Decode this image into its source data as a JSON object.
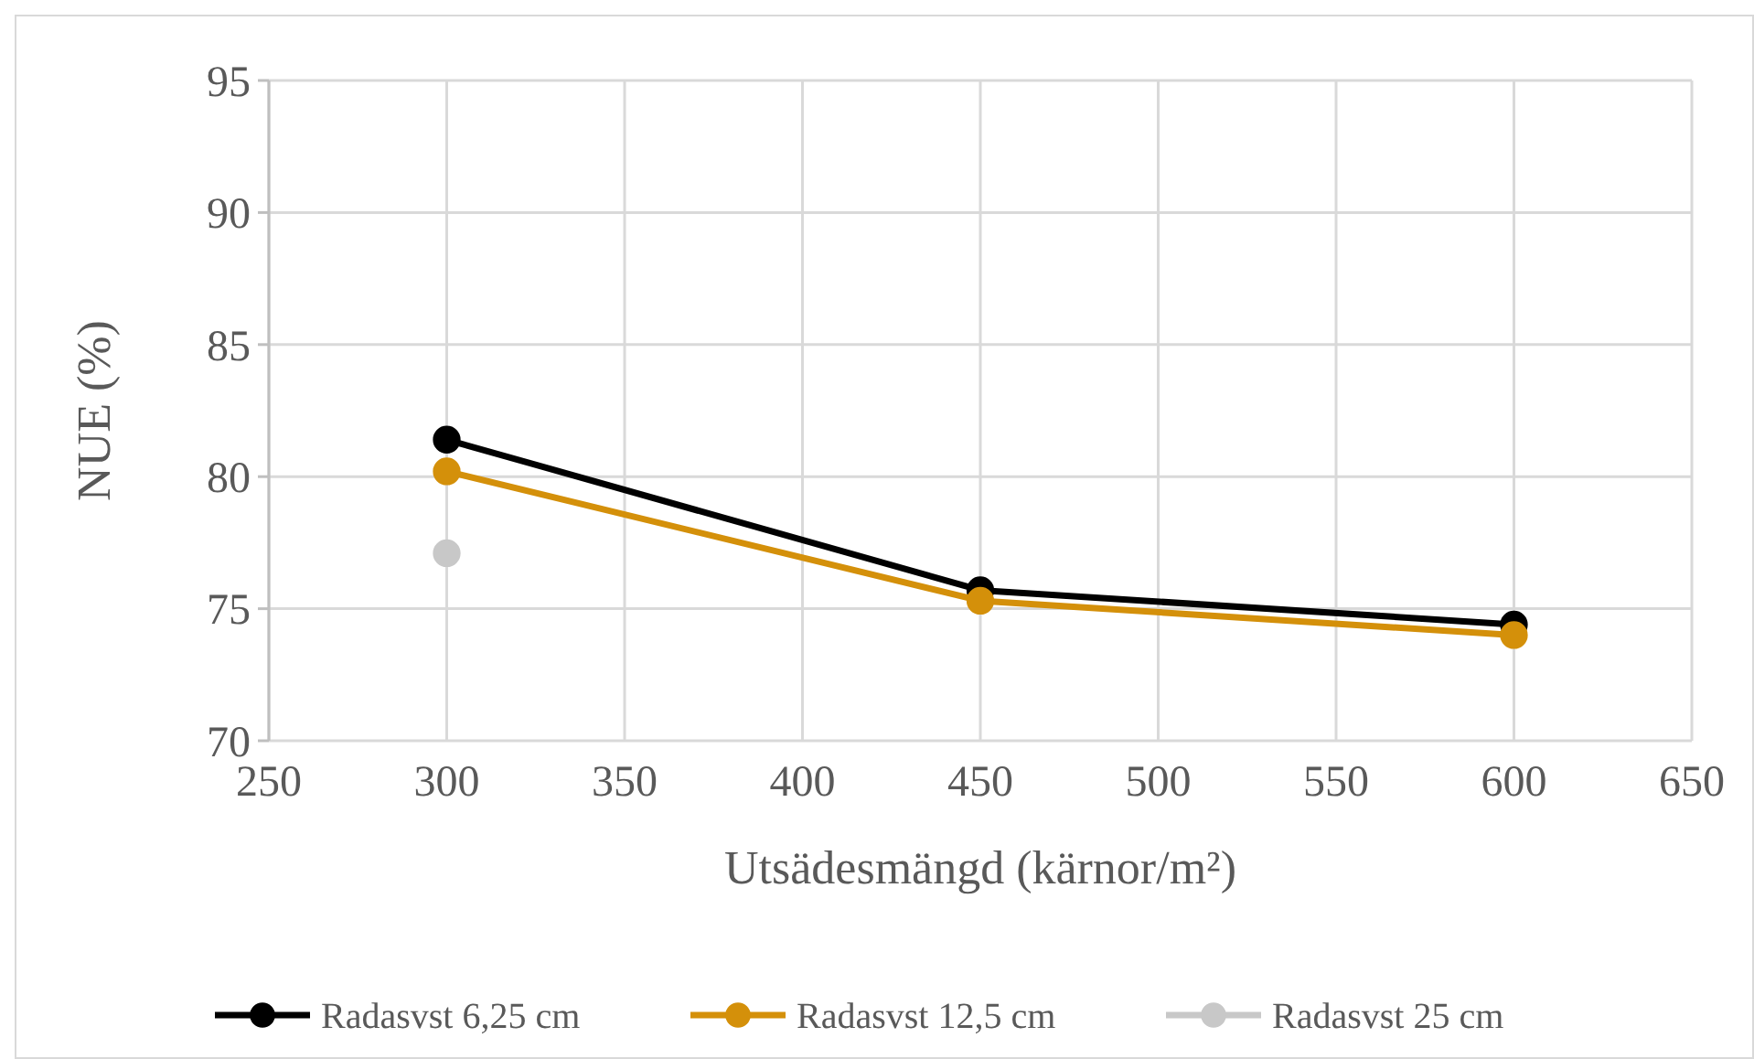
{
  "chart_data": {
    "type": "line",
    "xlabel": "Utsädesmängd (kärnor/m²)",
    "ylabel": "NUE (%)",
    "x": [
      300,
      450,
      600
    ],
    "series": [
      {
        "name": "Radasvst 6,25 cm",
        "color": "#000000",
        "values": [
          81.4,
          75.7,
          74.4
        ]
      },
      {
        "name": "Radasvst 12,5 cm",
        "color": "#d4900a",
        "values": [
          80.2,
          75.3,
          74.0
        ]
      },
      {
        "name": "Radasvst 25 cm",
        "color": "#c8c8c8",
        "values": [
          77.1,
          null,
          null
        ]
      }
    ],
    "xlim": [
      250,
      650
    ],
    "xticks": [
      250,
      300,
      350,
      400,
      450,
      500,
      550,
      600,
      650
    ],
    "ylim": [
      70,
      95
    ],
    "yticks": [
      70,
      75,
      80,
      85,
      90,
      95
    ],
    "grid": true,
    "legend": "bottom",
    "marker": "circle",
    "line_style": "solid"
  }
}
